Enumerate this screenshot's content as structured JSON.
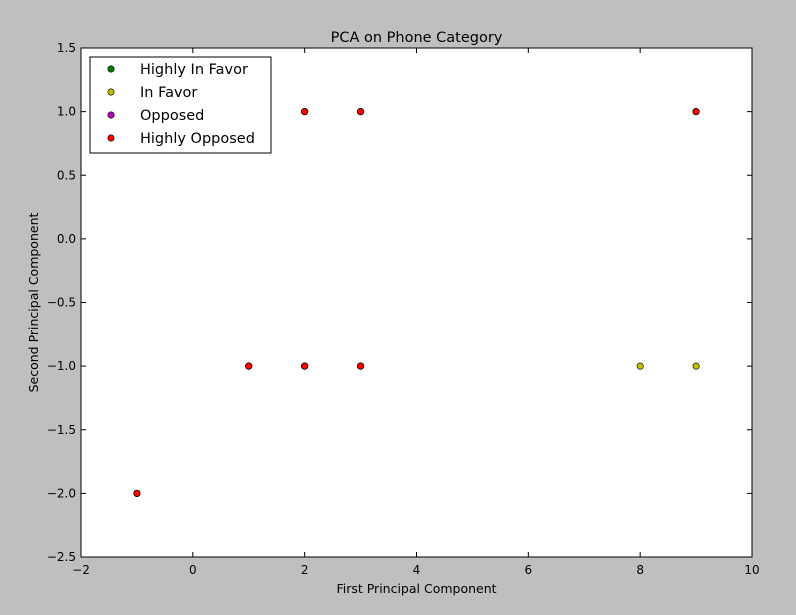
{
  "chart_data": {
    "type": "scatter",
    "title": "PCA on Phone Category",
    "xlabel": "First Principal Component",
    "ylabel": "Second Principal Component",
    "xlim": [
      -2,
      10
    ],
    "ylim": [
      -2.5,
      1.5
    ],
    "x_ticks": [
      -2,
      0,
      2,
      4,
      6,
      8,
      10
    ],
    "y_ticks": [
      -2.5,
      -2.0,
      -1.5,
      -1.0,
      -0.5,
      0.0,
      0.5,
      1.0,
      1.5
    ],
    "x_tick_labels": [
      "−2",
      "0",
      "2",
      "4",
      "6",
      "8",
      "10"
    ],
    "y_tick_labels": [
      "−2.5",
      "−2.0",
      "−1.5",
      "−1.0",
      "−0.5",
      "0.0",
      "0.5",
      "1.0",
      "1.5"
    ],
    "grid": false,
    "legend_position": "top-left",
    "series": [
      {
        "name": "Highly In Favor",
        "color": "#008000",
        "points": [
          [
            -1,
            -2
          ],
          [
            1,
            -1
          ],
          [
            2,
            -1
          ],
          [
            3,
            -1
          ],
          [
            2,
            1
          ],
          [
            3,
            1
          ],
          [
            9,
            1
          ]
        ]
      },
      {
        "name": "In Favor",
        "color": "#bfbf00",
        "points": [
          [
            8,
            -1
          ],
          [
            9,
            -1
          ],
          [
            -1,
            -2
          ],
          [
            1,
            -1
          ],
          [
            2,
            -1
          ],
          [
            3,
            -1
          ],
          [
            2,
            1
          ],
          [
            3,
            1
          ],
          [
            9,
            1
          ]
        ]
      },
      {
        "name": "Opposed",
        "color": "#bf00bf",
        "points": [
          [
            -1,
            -2
          ],
          [
            1,
            -1
          ],
          [
            2,
            -1
          ],
          [
            3,
            -1
          ],
          [
            2,
            1
          ],
          [
            3,
            1
          ],
          [
            9,
            1
          ]
        ]
      },
      {
        "name": "Highly Opposed",
        "color": "#ff0000",
        "points": [
          [
            -1,
            -2
          ],
          [
            1,
            -1
          ],
          [
            2,
            -1
          ],
          [
            3,
            -1
          ],
          [
            2,
            1
          ],
          [
            3,
            1
          ],
          [
            9,
            1
          ]
        ]
      }
    ]
  }
}
